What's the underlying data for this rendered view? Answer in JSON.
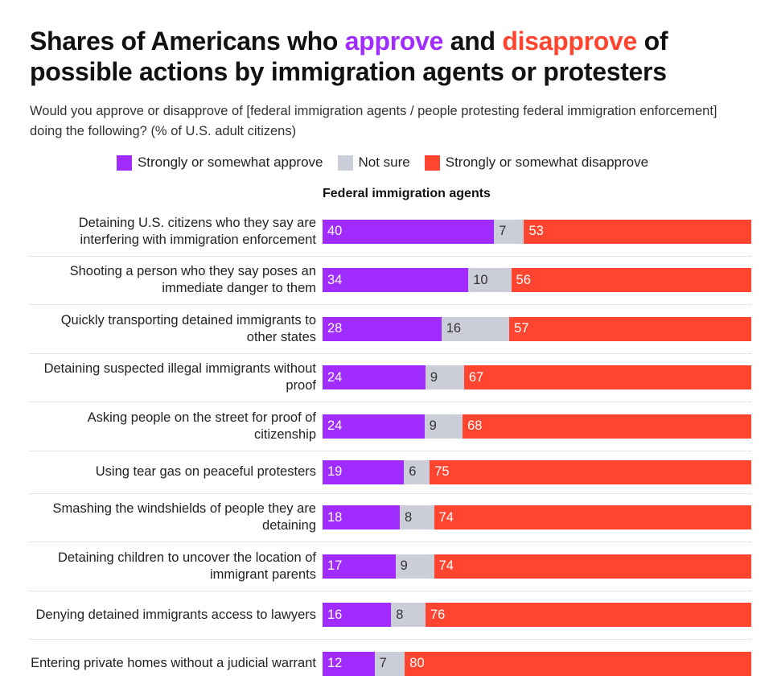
{
  "title_parts": [
    "Shares of Americans who ",
    "approve",
    " and ",
    "disapprove",
    " of possible actions by immigration agents or protesters"
  ],
  "subtitle": "Would you approve or disapprove of [federal immigration agents / people protesting federal immigration enforcement] doing the following? (% of U.S. adult citizens)",
  "colors": {
    "approve": "#a12cff",
    "not_sure": "#cbced8",
    "disapprove": "#ff4530"
  },
  "chart_data": {
    "type": "bar",
    "stacked": true,
    "orientation": "horizontal",
    "panel_title": "Federal immigration agents",
    "legend": [
      "Strongly or somewhat approve",
      "Not sure",
      "Strongly or somewhat disapprove"
    ],
    "legend_placement": "top",
    "categories": [
      "Detaining U.S. citizens who they say are interfering with immigration enforcement",
      "Shooting a person who they say poses an immediate danger to them",
      "Quickly transporting detained immigrants to other states",
      "Detaining suspected illegal immigrants without proof",
      "Asking people on the street for proof of citizenship",
      "Using tear gas on peaceful protesters",
      "Smashing the windshields of people they are detaining",
      "Detaining children to uncover the location of immigrant parents",
      "Denying detained immigrants access to lawyers",
      "Entering private homes without a judicial warrant"
    ],
    "series": [
      {
        "name": "Strongly or somewhat approve",
        "values": [
          40,
          34,
          28,
          24,
          24,
          19,
          18,
          17,
          16,
          12
        ]
      },
      {
        "name": "Not sure",
        "values": [
          7,
          10,
          16,
          9,
          9,
          6,
          8,
          9,
          8,
          7
        ]
      },
      {
        "name": "Strongly or somewhat disapprove",
        "values": [
          53,
          56,
          57,
          67,
          68,
          75,
          74,
          74,
          76,
          80
        ]
      }
    ]
  }
}
